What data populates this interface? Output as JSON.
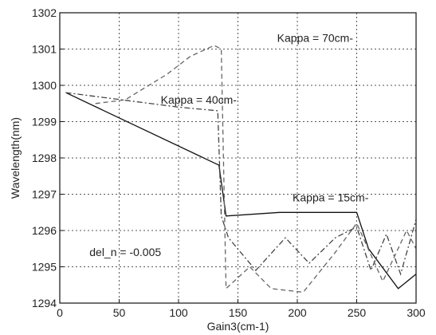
{
  "chart_data": {
    "type": "line",
    "xlabel": "Gain3(cm-1)",
    "ylabel": "Wavelength(nm)",
    "xlim": [
      0,
      300
    ],
    "ylim": [
      1294,
      1302
    ],
    "xticks": [
      0,
      50,
      100,
      150,
      200,
      250,
      300
    ],
    "yticks": [
      1294,
      1295,
      1296,
      1297,
      1298,
      1299,
      1300,
      1301,
      1302
    ],
    "grid": true,
    "series": [
      {
        "name": "Kappa = 15cm-",
        "style": "solid",
        "color": "#111111",
        "x": [
          5,
          134,
          140,
          185,
          250,
          260,
          285,
          300
        ],
        "y": [
          1299.8,
          1297.8,
          1296.4,
          1296.5,
          1296.5,
          1295.5,
          1294.4,
          1294.8
        ]
      },
      {
        "name": "Kappa = 40cm-",
        "style": "dashdot",
        "color": "#444444",
        "x": [
          5,
          100,
          133,
          136,
          142,
          165,
          190,
          210,
          232,
          250,
          262,
          275,
          287,
          300
        ],
        "y": [
          1299.8,
          1299.4,
          1299.3,
          1296.4,
          1295.8,
          1294.9,
          1295.8,
          1295.1,
          1295.8,
          1296.1,
          1294.9,
          1295.9,
          1294.8,
          1296.3
        ]
      },
      {
        "name": "Kappa = 70cm-",
        "style": "dashed",
        "color": "#666666",
        "x": [
          30,
          55,
          90,
          110,
          130,
          136,
          140,
          160,
          178,
          205,
          232,
          250,
          272,
          292,
          300
        ],
        "y": [
          1299.5,
          1299.6,
          1300.3,
          1300.8,
          1301.1,
          1301.0,
          1294.4,
          1295.0,
          1294.4,
          1294.3,
          1295.4,
          1296.2,
          1294.6,
          1296.0,
          1295.5
        ]
      }
    ],
    "annotations": [
      {
        "text": "Kappa = 70cm-",
        "x": 183,
        "y": 1301.2
      },
      {
        "text": "Kappa = 40cm-",
        "x": 85,
        "y": 1299.5
      },
      {
        "text": "Kappa = 15cm-",
        "x": 196,
        "y": 1296.8
      },
      {
        "text": "del_n = -0.005",
        "x": 25,
        "y": 1295.3
      }
    ]
  }
}
